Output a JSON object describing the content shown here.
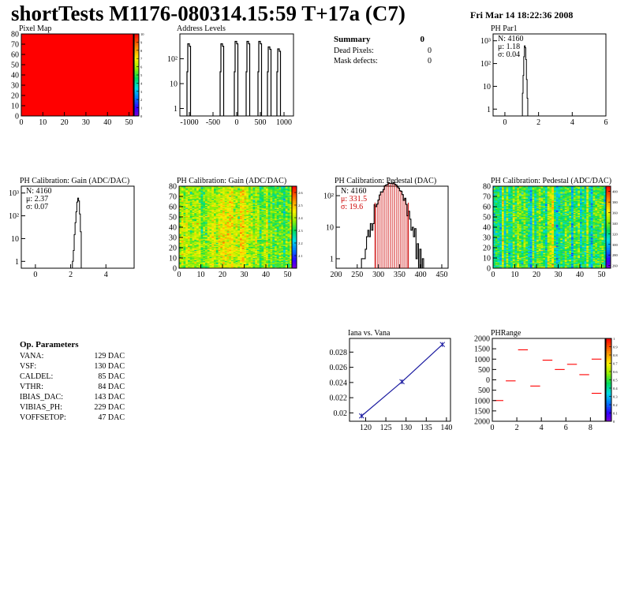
{
  "header": {
    "title": "shortTests M1176-080314.15:59 T+17a (C7)",
    "datetime": "Fri Mar 14 18:22:36 2008"
  },
  "summary": {
    "title": "Summary",
    "title_value": "0",
    "rows": [
      {
        "label": "Dead Pixels:",
        "value": "0"
      },
      {
        "label": "Mask defects:",
        "value": "0"
      }
    ]
  },
  "op_parameters": {
    "title": "Op. Parameters",
    "rows": [
      {
        "label": "VANA:",
        "value": "129 DAC"
      },
      {
        "label": "VSF:",
        "value": "130 DAC"
      },
      {
        "label": "CALDEL:",
        "value": "85 DAC"
      },
      {
        "label": "VTHR:",
        "value": "84 DAC"
      },
      {
        "label": "IBIAS_DAC:",
        "value": "143 DAC"
      },
      {
        "label": "VIBIAS_PH:",
        "value": "229 DAC"
      },
      {
        "label": "VOFFSETOP:",
        "value": "47 DAC"
      }
    ]
  },
  "chart_data": [
    {
      "id": "pixel-map",
      "type": "heatmap",
      "title": "Pixel Map",
      "xlim": [
        0,
        52
      ],
      "ylim": [
        0,
        80
      ],
      "xticks": [
        "0",
        "10",
        "20",
        "30",
        "40",
        "50"
      ],
      "yticks": [
        "0",
        "10",
        "20",
        "30",
        "40",
        "50",
        "60",
        "70",
        "80"
      ],
      "zlim": [
        0,
        10
      ],
      "zticks": [
        "0",
        "1",
        "2",
        "3",
        "4",
        "5",
        "6",
        "7",
        "8",
        "9",
        "10"
      ],
      "fill_value": 10,
      "fill_color": "#ff0000"
    },
    {
      "id": "address-levels",
      "type": "bar",
      "title": "Address Levels",
      "xlim": [
        -1200,
        1200
      ],
      "xticks": [
        "-1000",
        "-500",
        "0",
        "500",
        "1000"
      ],
      "yscale": "log",
      "ylim": [
        0.5,
        1000
      ],
      "yticks": [
        "1",
        "10",
        "10²"
      ],
      "peaks": [
        {
          "x": -1000,
          "y": 400
        },
        {
          "x": -300,
          "y": 400
        },
        {
          "x": 0,
          "y": 500
        },
        {
          "x": 250,
          "y": 500
        },
        {
          "x": 500,
          "y": 500
        },
        {
          "x": 700,
          "y": 300
        },
        {
          "x": 900,
          "y": 250
        }
      ]
    },
    {
      "id": "ph-par1",
      "type": "bar",
      "title": "PH Par1",
      "stats": [
        "N: 4160",
        "μ: 1.18",
        "σ: 0.04"
      ],
      "xlim": [
        -0.7,
        6
      ],
      "xticks": [
        "0",
        "2",
        "4",
        "6"
      ],
      "yscale": "log",
      "ylim": [
        0.5,
        2000
      ],
      "yticks": [
        "1",
        "10",
        "10²",
        "10³"
      ],
      "bins": [
        [
          1.04,
          5
        ],
        [
          1.08,
          30
        ],
        [
          1.12,
          200
        ],
        [
          1.16,
          600
        ],
        [
          1.2,
          500
        ],
        [
          1.24,
          150
        ],
        [
          1.28,
          20
        ],
        [
          1.32,
          3
        ]
      ]
    },
    {
      "id": "ph-gain-hist",
      "type": "bar",
      "title": "PH Calibration: Gain (ADC/DAC)",
      "stats": [
        "N: 4160",
        "μ: 2.37",
        "σ: 0.07"
      ],
      "xlim": [
        -0.8,
        5.6
      ],
      "xticks": [
        "0",
        "2",
        "4"
      ],
      "yscale": "log",
      "ylim": [
        0.5,
        2000
      ],
      "yticks": [
        "1",
        "10",
        "10²",
        "10³"
      ],
      "bins": [
        [
          2.1,
          1
        ],
        [
          2.15,
          3
        ],
        [
          2.2,
          15
        ],
        [
          2.25,
          50
        ],
        [
          2.3,
          150
        ],
        [
          2.35,
          400
        ],
        [
          2.4,
          600
        ],
        [
          2.45,
          450
        ],
        [
          2.5,
          120
        ],
        [
          2.55,
          20
        ]
      ]
    },
    {
      "id": "ph-gain-map",
      "type": "heatmap",
      "title": "PH Calibration: Gain (ADC/DAC)",
      "xlim": [
        0,
        52
      ],
      "ylim": [
        0,
        80
      ],
      "xticks": [
        "0",
        "10",
        "20",
        "30",
        "40",
        "50"
      ],
      "yticks": [
        "0",
        "10",
        "20",
        "30",
        "40",
        "50",
        "60",
        "70",
        "80"
      ],
      "zlim": [
        2.0,
        2.65
      ],
      "zticks": [
        "2.1",
        "2.2",
        "2.3",
        "2.4",
        "2.5",
        "2.6"
      ],
      "mean": 2.37,
      "sigma": 0.07
    },
    {
      "id": "ph-pedestal-hist",
      "type": "bar",
      "title": "PH Calibration: Pedestal (DAC)",
      "stats": [
        "N: 4160",
        "μ: 331.5",
        "σ: 19.6"
      ],
      "stats_colors": [
        "#000000",
        "#cc0000",
        "#cc0000"
      ],
      "xlim": [
        200,
        465
      ],
      "xticks": [
        "200",
        "250",
        "300",
        "350",
        "400",
        "450"
      ],
      "yscale": "log",
      "ylim": [
        0.5,
        200
      ],
      "yticks": [
        "1",
        "10",
        "10²"
      ],
      "mean": 331.5,
      "sigma": 19.6,
      "N": 4160,
      "cut_lines": [
        292,
        371
      ],
      "line_color": "#cc0000"
    },
    {
      "id": "ph-pedestal-map",
      "type": "heatmap",
      "title": "PH Calibration: Pedestal (ADC/DAC)",
      "xlim": [
        0,
        52
      ],
      "ylim": [
        0,
        80
      ],
      "xticks": [
        "0",
        "10",
        "20",
        "30",
        "40",
        "50"
      ],
      "yticks": [
        "0",
        "10",
        "20",
        "30",
        "40",
        "50",
        "60",
        "70",
        "80"
      ],
      "zlim": [
        255,
        410
      ],
      "zticks": [
        "260",
        "280",
        "300",
        "320",
        "340",
        "360",
        "380",
        "400",
        "420"
      ],
      "mean": 331.5,
      "sigma": 19.6
    },
    {
      "id": "iana-vana",
      "type": "line",
      "title": "Iana vs. Vana",
      "xlim": [
        116,
        141
      ],
      "ylim": [
        0.0189,
        0.0298
      ],
      "xticks": [
        "120",
        "125",
        "130",
        "135",
        "140"
      ],
      "yticks": [
        "0.02",
        "0.022",
        "0.024",
        "0.026",
        "0.028"
      ],
      "x": [
        119,
        129,
        139
      ],
      "y": [
        0.0196,
        0.0241,
        0.029
      ],
      "color": "#1a1aa0"
    },
    {
      "id": "ph-range",
      "type": "scatter",
      "title": "PHRange",
      "xlim": [
        0,
        9.2
      ],
      "ylim": [
        -2000,
        2000
      ],
      "xticks": [
        "0",
        "2",
        "4",
        "6",
        "8"
      ],
      "yticks": [
        "2000",
        "1500",
        "1000",
        "500",
        "0",
        "500",
        "1000",
        "1500",
        "2000"
      ],
      "zlim": [
        0,
        1
      ],
      "zticks": [
        "0",
        "0.1",
        "0.2",
        "0.3",
        "0.4",
        "0.5",
        "0.6",
        "0.7",
        "0.8",
        "0.9",
        "1"
      ],
      "segments": [
        {
          "x0": 0,
          "x1": 1,
          "y": -1000
        },
        {
          "x0": 1,
          "x1": 2,
          "y": -50
        },
        {
          "x0": 2,
          "x1": 3,
          "y": 1450
        },
        {
          "x0": 3,
          "x1": 4,
          "y": -300
        },
        {
          "x0": 4,
          "x1": 5,
          "y": 950
        },
        {
          "x0": 5,
          "x1": 6,
          "y": 500
        },
        {
          "x0": 6,
          "x1": 7,
          "y": 750
        },
        {
          "x0": 7,
          "x1": 8,
          "y": 250
        },
        {
          "x0": 8,
          "x1": 9,
          "y": 1000
        },
        {
          "x0": 8,
          "x1": 9,
          "y": -650
        }
      ],
      "color": "#ff0000"
    }
  ]
}
